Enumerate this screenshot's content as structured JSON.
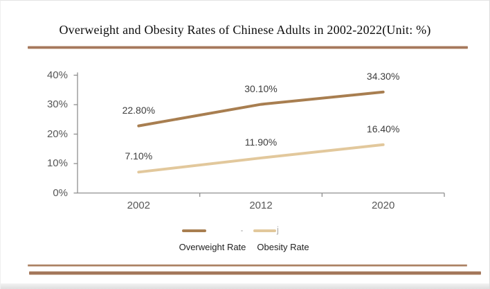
{
  "chart_data": {
    "type": "line",
    "title": "Overweight and Obesity Rates of Chinese Adults in 2002-2022(Unit: %)",
    "categories": [
      "2002",
      "2012",
      "2020"
    ],
    "series": [
      {
        "name": "Overweight Rate",
        "color": "#a87e50",
        "values": [
          22.8,
          30.1,
          34.3
        ],
        "labels": [
          "22.80%",
          "30.10%",
          "34.30%"
        ]
      },
      {
        "name": "Obesity Rate",
        "color": "#e2c89c",
        "values": [
          7.1,
          11.9,
          16.4
        ],
        "labels": [
          "7.10%",
          "11.90%",
          "16.40%"
        ]
      }
    ],
    "xlabel": "",
    "ylabel": "",
    "ylim": [
      0,
      40
    ],
    "y_tick_values": [
      0,
      10,
      20,
      30,
      40
    ],
    "y_tick_labels": [
      "0%",
      "10%",
      "20%",
      "30%",
      "40%"
    ],
    "grid": false,
    "legend_position": "bottom"
  },
  "legend": {
    "items": [
      {
        "label": "Overweight Rate",
        "swatch_color": "#a87e50"
      },
      {
        "label": "Obesity Rate",
        "swatch_color": "#e2c89c"
      }
    ],
    "artifact_mark": "j"
  },
  "colors": {
    "accent_rule": "#a5785c",
    "axis": "#8f8f8f",
    "tick_label_text": "#575757",
    "data_label_text": "#3d3d3d"
  }
}
